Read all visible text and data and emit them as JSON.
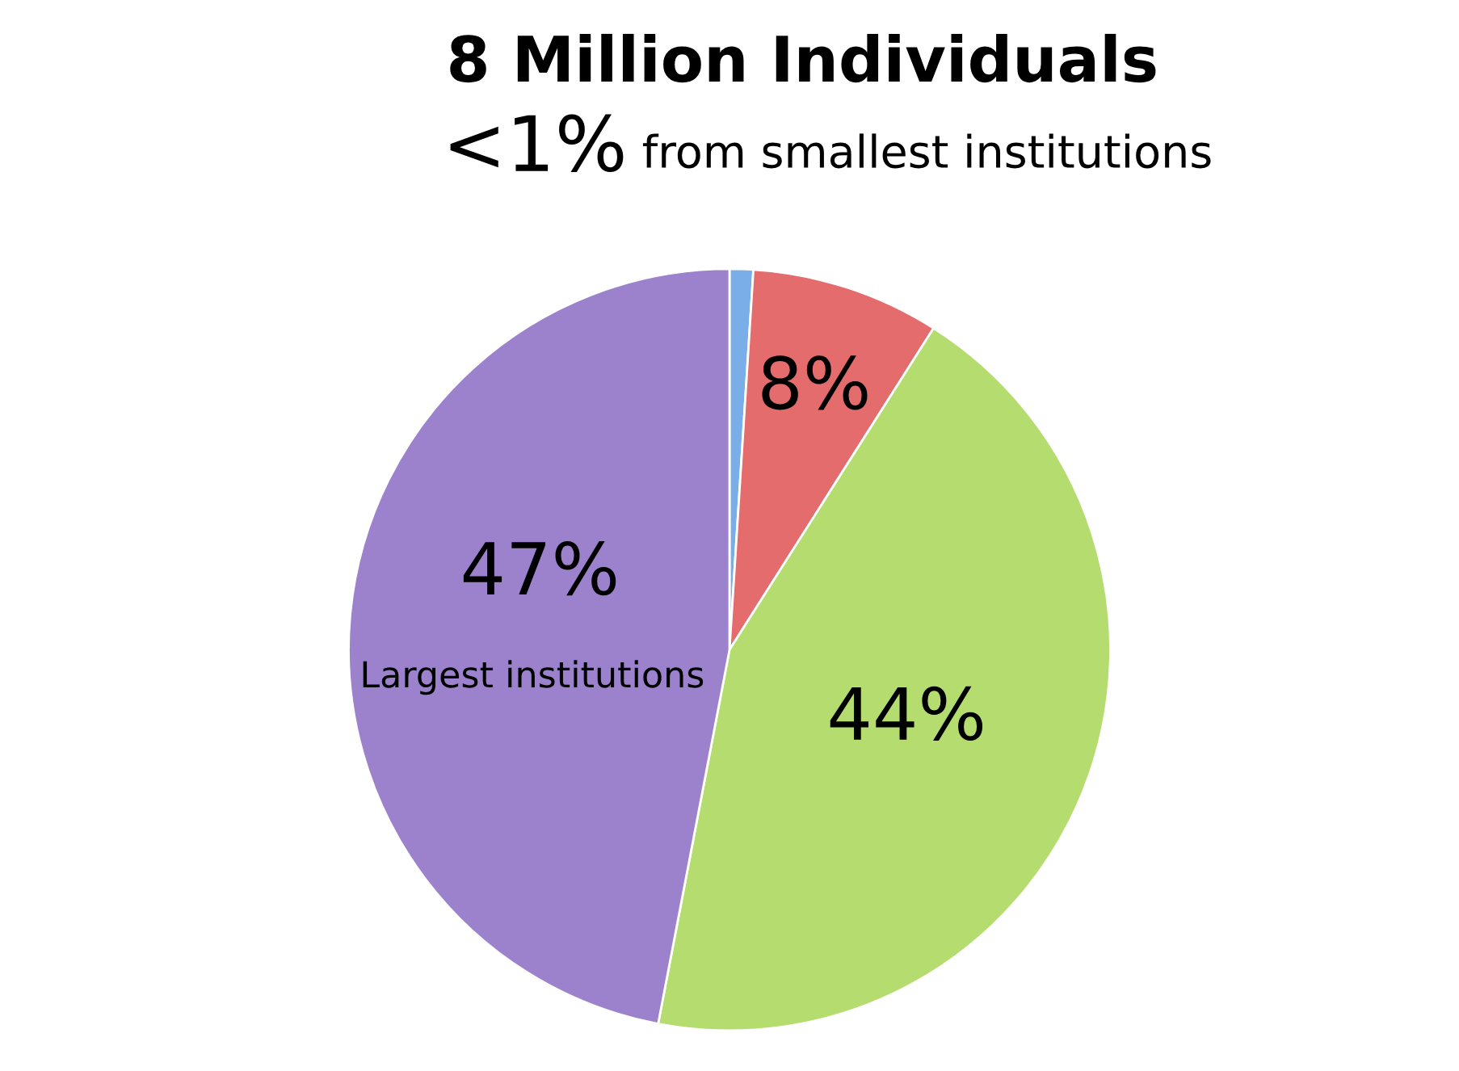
{
  "chart_data": {
    "type": "pie",
    "title": "8 Million Individuals",
    "categories": [
      "from smallest institutions",
      null,
      null,
      "Largest institutions"
    ],
    "values": [
      1,
      8,
      44,
      47
    ],
    "value_labels": [
      "<1%",
      "8%",
      "44%",
      "47%"
    ],
    "colors": [
      "#7aaee8",
      "#e46c6c",
      "#b4dc6e",
      "#9c82cc"
    ],
    "legend": false
  }
}
